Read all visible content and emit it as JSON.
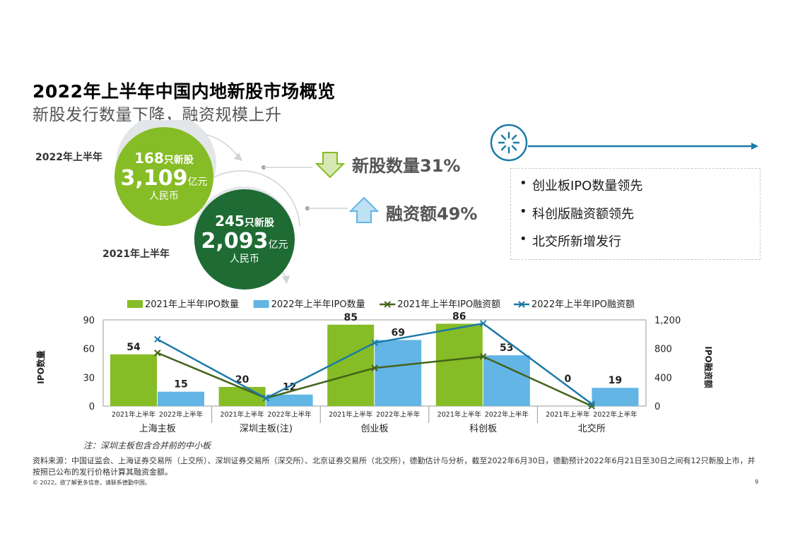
{
  "header": {
    "title": "2022年上半年中国内地新股市场概览",
    "subtitle": "新股发行数量下降，融资规模上升"
  },
  "summary": {
    "year_2022": {
      "label": "2022年上半年",
      "count": "168",
      "count_unit": "只新股",
      "amount": "3,109",
      "amount_unit": "亿元",
      "currency": "人民币",
      "color": "#86bc25"
    },
    "year_2021": {
      "label": "2021年上半年",
      "count": "245",
      "count_unit": "只新股",
      "amount": "2,093",
      "amount_unit": "亿元",
      "currency": "人民币",
      "color": "#1e6b33"
    },
    "stats": [
      {
        "icon": "arrow-down-icon",
        "text": "新股数量31%"
      },
      {
        "icon": "arrow-up-icon",
        "text": "融资额49%"
      }
    ]
  },
  "highlights": {
    "icon": "spark-icon",
    "items": [
      "创业板IPO数量领先",
      "科创版融资额领先",
      "北交所新增发行"
    ]
  },
  "chart_data": {
    "type": "bar",
    "legend_position": "top",
    "categories": [
      "上海主板",
      "深圳主板(注)",
      "创业板",
      "科创板",
      "北交所"
    ],
    "sub_labels": [
      "2021年上半年",
      "2022年上半年"
    ],
    "series": [
      {
        "name": "2021年上半年IPO数量",
        "type": "bar",
        "axis": "left",
        "values": [
          54,
          20,
          85,
          86,
          0
        ],
        "labels": [
          "54",
          "20",
          "85",
          "86",
          "0"
        ],
        "color": "#86bc25"
      },
      {
        "name": "2022年上半年IPO数量",
        "type": "bar",
        "axis": "left",
        "values": [
          15,
          12,
          69,
          53,
          19
        ],
        "labels": [
          "15",
          "12",
          "69",
          "53",
          "19"
        ],
        "color": "#62b5e5"
      },
      {
        "name": "2021年上半年IPO融资额",
        "type": "line",
        "axis": "right",
        "values": [
          740,
          110,
          530,
          690,
          0
        ],
        "color": "#43631b"
      },
      {
        "name": "2022年上半年IPO融资额",
        "type": "line",
        "axis": "right",
        "values": [
          930,
          110,
          880,
          1150,
          30
        ],
        "color": "#1c7aa8"
      }
    ],
    "y_left": {
      "label": "IPO数量",
      "min": 0,
      "max": 90,
      "ticks": [
        "0",
        "30",
        "60",
        "90"
      ]
    },
    "y_right": {
      "label": "IPO融资额",
      "min": 0,
      "max": 1200,
      "ticks": [
        "0",
        "400",
        "800",
        "1,200"
      ]
    }
  },
  "footer": {
    "note": "注：深圳主板包含合并前的中小板",
    "source": "资料来源：中国证监会、上海证券交易所（上交所）、深圳证券交易所（深交所）、北京证券交易所（北交所），德勤估计与分析，截至2022年6月30日，德勤预计2022年6月21日至30日之间有12只新股上市，并按照已公布的发行价格计算其融资金额。",
    "copyright": "© 2022。欲了解更多信息，请联系德勤中国。",
    "page": "9"
  }
}
